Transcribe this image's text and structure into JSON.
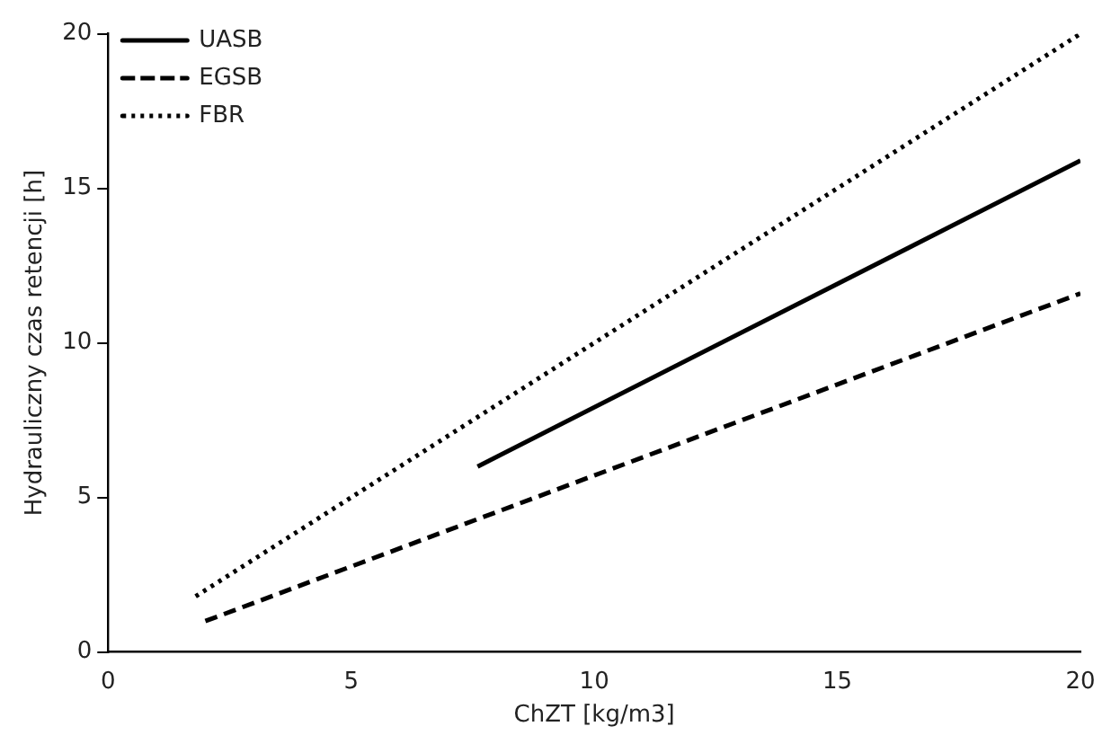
{
  "chart_data": {
    "type": "line",
    "xlabel": "ChZT [kg/m3]",
    "ylabel": "Hydrauliczny czas retencji [h]",
    "xlim": [
      0,
      20
    ],
    "xticks": [
      0,
      5,
      10,
      15,
      20
    ],
    "ylim": [
      0,
      20
    ],
    "yticks": [
      0,
      5,
      10,
      15,
      20
    ],
    "grid": false,
    "legend": "top left",
    "marker": "none",
    "series": [
      {
        "name": "UASB",
        "color": "#000000",
        "line_style": "solid",
        "x": [
          7.6,
          20
        ],
        "values": [
          6,
          15.9
        ]
      },
      {
        "name": "EGSB",
        "color": "#000000",
        "line_style": "dashed",
        "x": [
          2,
          20
        ],
        "values": [
          1,
          11.6
        ]
      },
      {
        "name": "FBR",
        "color": "#000000",
        "line_style": "dotted",
        "x": [
          1.8,
          20
        ],
        "values": [
          1.8,
          20
        ]
      }
    ]
  }
}
